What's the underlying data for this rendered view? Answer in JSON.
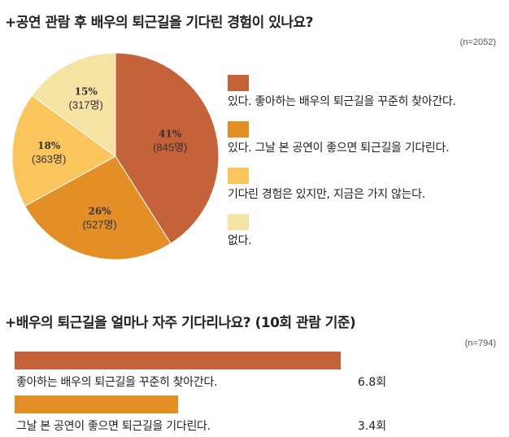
{
  "colors": {
    "slice1": "#C4623A",
    "slice2": "#E38F26",
    "slice3": "#F9C55C",
    "slice4": "#F5E3A3"
  },
  "section1": {
    "title": "+공연 관람 후 배우의 퇴근길을 기다린 경험이 있나요?",
    "note": "(n=2052)"
  },
  "section2": {
    "title": "+배우의 퇴근길을 얼마나 자주 기다리나요? (10회 관람 기준)",
    "note": "(n=794)"
  },
  "chart_data": [
    {
      "type": "pie",
      "title": "+공연 관람 후 배우의 퇴근길을 기다린 경험이 있나요?",
      "n": "(n=2052)",
      "slices": [
        {
          "label": "있다. 좋아하는 배우의 퇴근길을 꾸준히 찾아간다.",
          "percent": 41,
          "pct_text": "41%",
          "count_text": "(845명)",
          "color": "#C4623A"
        },
        {
          "label": "있다. 그날 본 공연이 좋으면 퇴근길을 기다린다.",
          "percent": 26,
          "pct_text": "26%",
          "count_text": "(527명)",
          "color": "#E38F26"
        },
        {
          "label": "기다린 경험은 있지만, 지금은 가지 않는다.",
          "percent": 18,
          "pct_text": "18%",
          "count_text": "(363명)",
          "color": "#F9C55C"
        },
        {
          "label": "없다.",
          "percent": 15,
          "pct_text": "15%",
          "count_text": "(317명)",
          "color": "#F5E3A3"
        }
      ]
    },
    {
      "type": "bar",
      "orientation": "horizontal",
      "title": "+배우의 퇴근길을 얼마나 자주 기다리나요? (10회 관람 기준)",
      "n": "(n=794)",
      "xlim": [
        0,
        10
      ],
      "categories": [
        "좋아하는 배우의 퇴근길을 꾸준히 찾아간다.",
        "그날 본 공연이 좋으면 퇴근길을 기다린다."
      ],
      "values": [
        6.8,
        3.4
      ],
      "value_labels": [
        "6.8회",
        "3.4회"
      ],
      "colors": [
        "#C4623A",
        "#E38F26"
      ]
    }
  ]
}
